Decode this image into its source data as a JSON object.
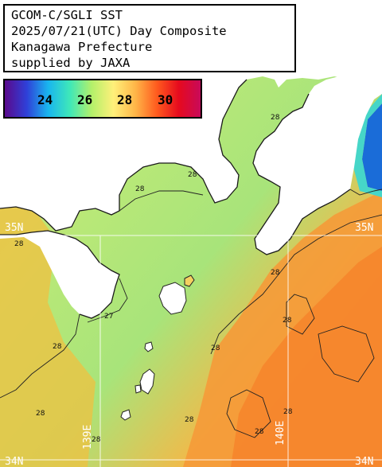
{
  "title": {
    "lines": [
      "GCOM-C/SGLI SST",
      "2025/07/21(UTC) Day Composite",
      "Kanagawa Prefecture",
      "supplied by JAXA"
    ]
  },
  "legend": {
    "ticks": [
      "24",
      "26",
      "28",
      "30"
    ],
    "colors": [
      "#5a0a8c",
      "#2f3fd8",
      "#19b6ef",
      "#3fe8b8",
      "#b4f06a",
      "#fff07a",
      "#ffb648",
      "#ff5a1e",
      "#e60a1e",
      "#c80a5a"
    ]
  },
  "grid": {
    "lat_labels": [
      "35N",
      "35N",
      "34N",
      "34N"
    ],
    "lon_labels": [
      "139E",
      "140E"
    ]
  },
  "contours": {
    "labels": [
      "28",
      "28",
      "28",
      "28",
      "28",
      "28",
      "27",
      "28",
      "28",
      "28",
      "28",
      "28",
      "28",
      "28"
    ]
  },
  "colors": {
    "land": "#ffffff",
    "cool_sea": "#a8e878",
    "warm_sea": "#f0a030",
    "hot_sea": "#ff7a20",
    "cold_sea": "#1a6cd8"
  }
}
